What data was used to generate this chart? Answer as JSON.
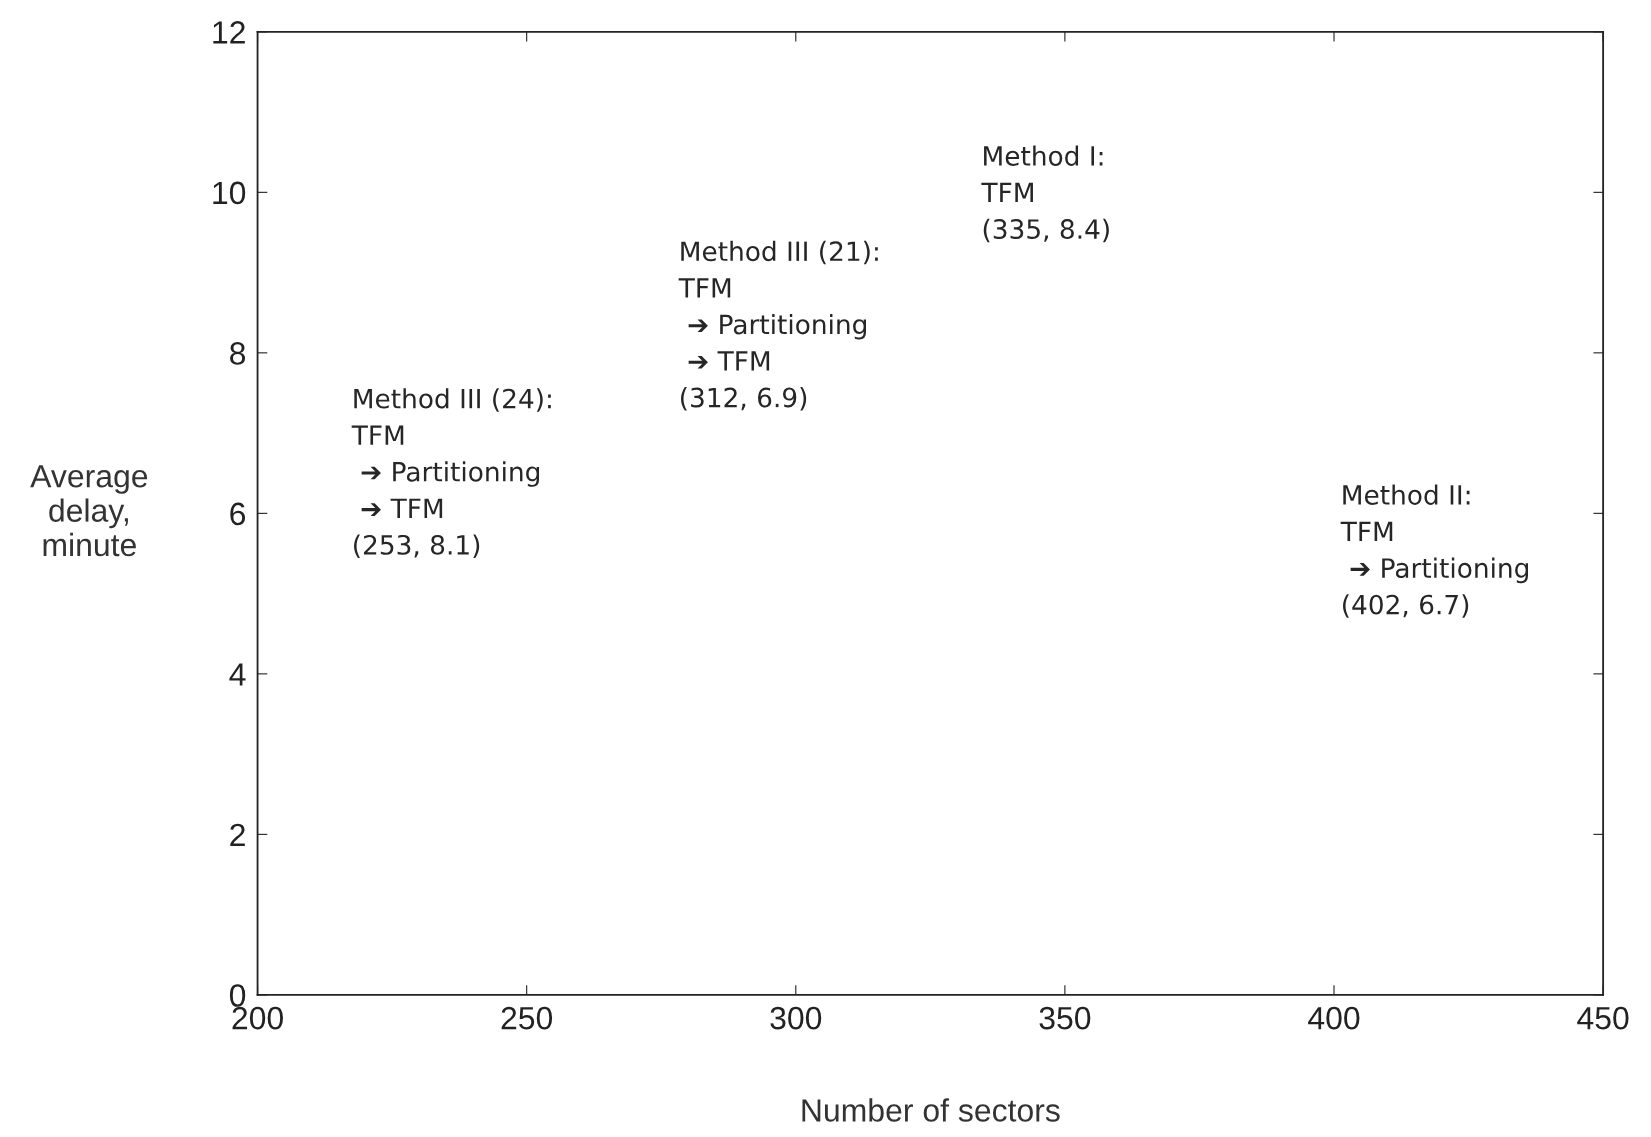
{
  "chart_data": {
    "type": "scatter",
    "xlabel": "Number of sectors",
    "ylabel": "Average\ndelay,\nminute",
    "xlim": [
      200,
      450
    ],
    "xticks": [
      200,
      250,
      300,
      350,
      400,
      450
    ],
    "ylim": [
      0,
      12
    ],
    "yticks": [
      0,
      2,
      4,
      6,
      8,
      10,
      12
    ],
    "annotations": [
      "Method III (24):\nTFM\n ➔ Partitioning\n ➔ TFM\n(253, 8.1)",
      "Method III (21):\nTFM\n ➔ Partitioning\n ➔ TFM\n(312, 6.9)",
      "Method I:\nTFM\n(335, 8.4)",
      "Method II:\nTFM\n ➔ Partitioning\n(402, 6.7)"
    ]
  }
}
